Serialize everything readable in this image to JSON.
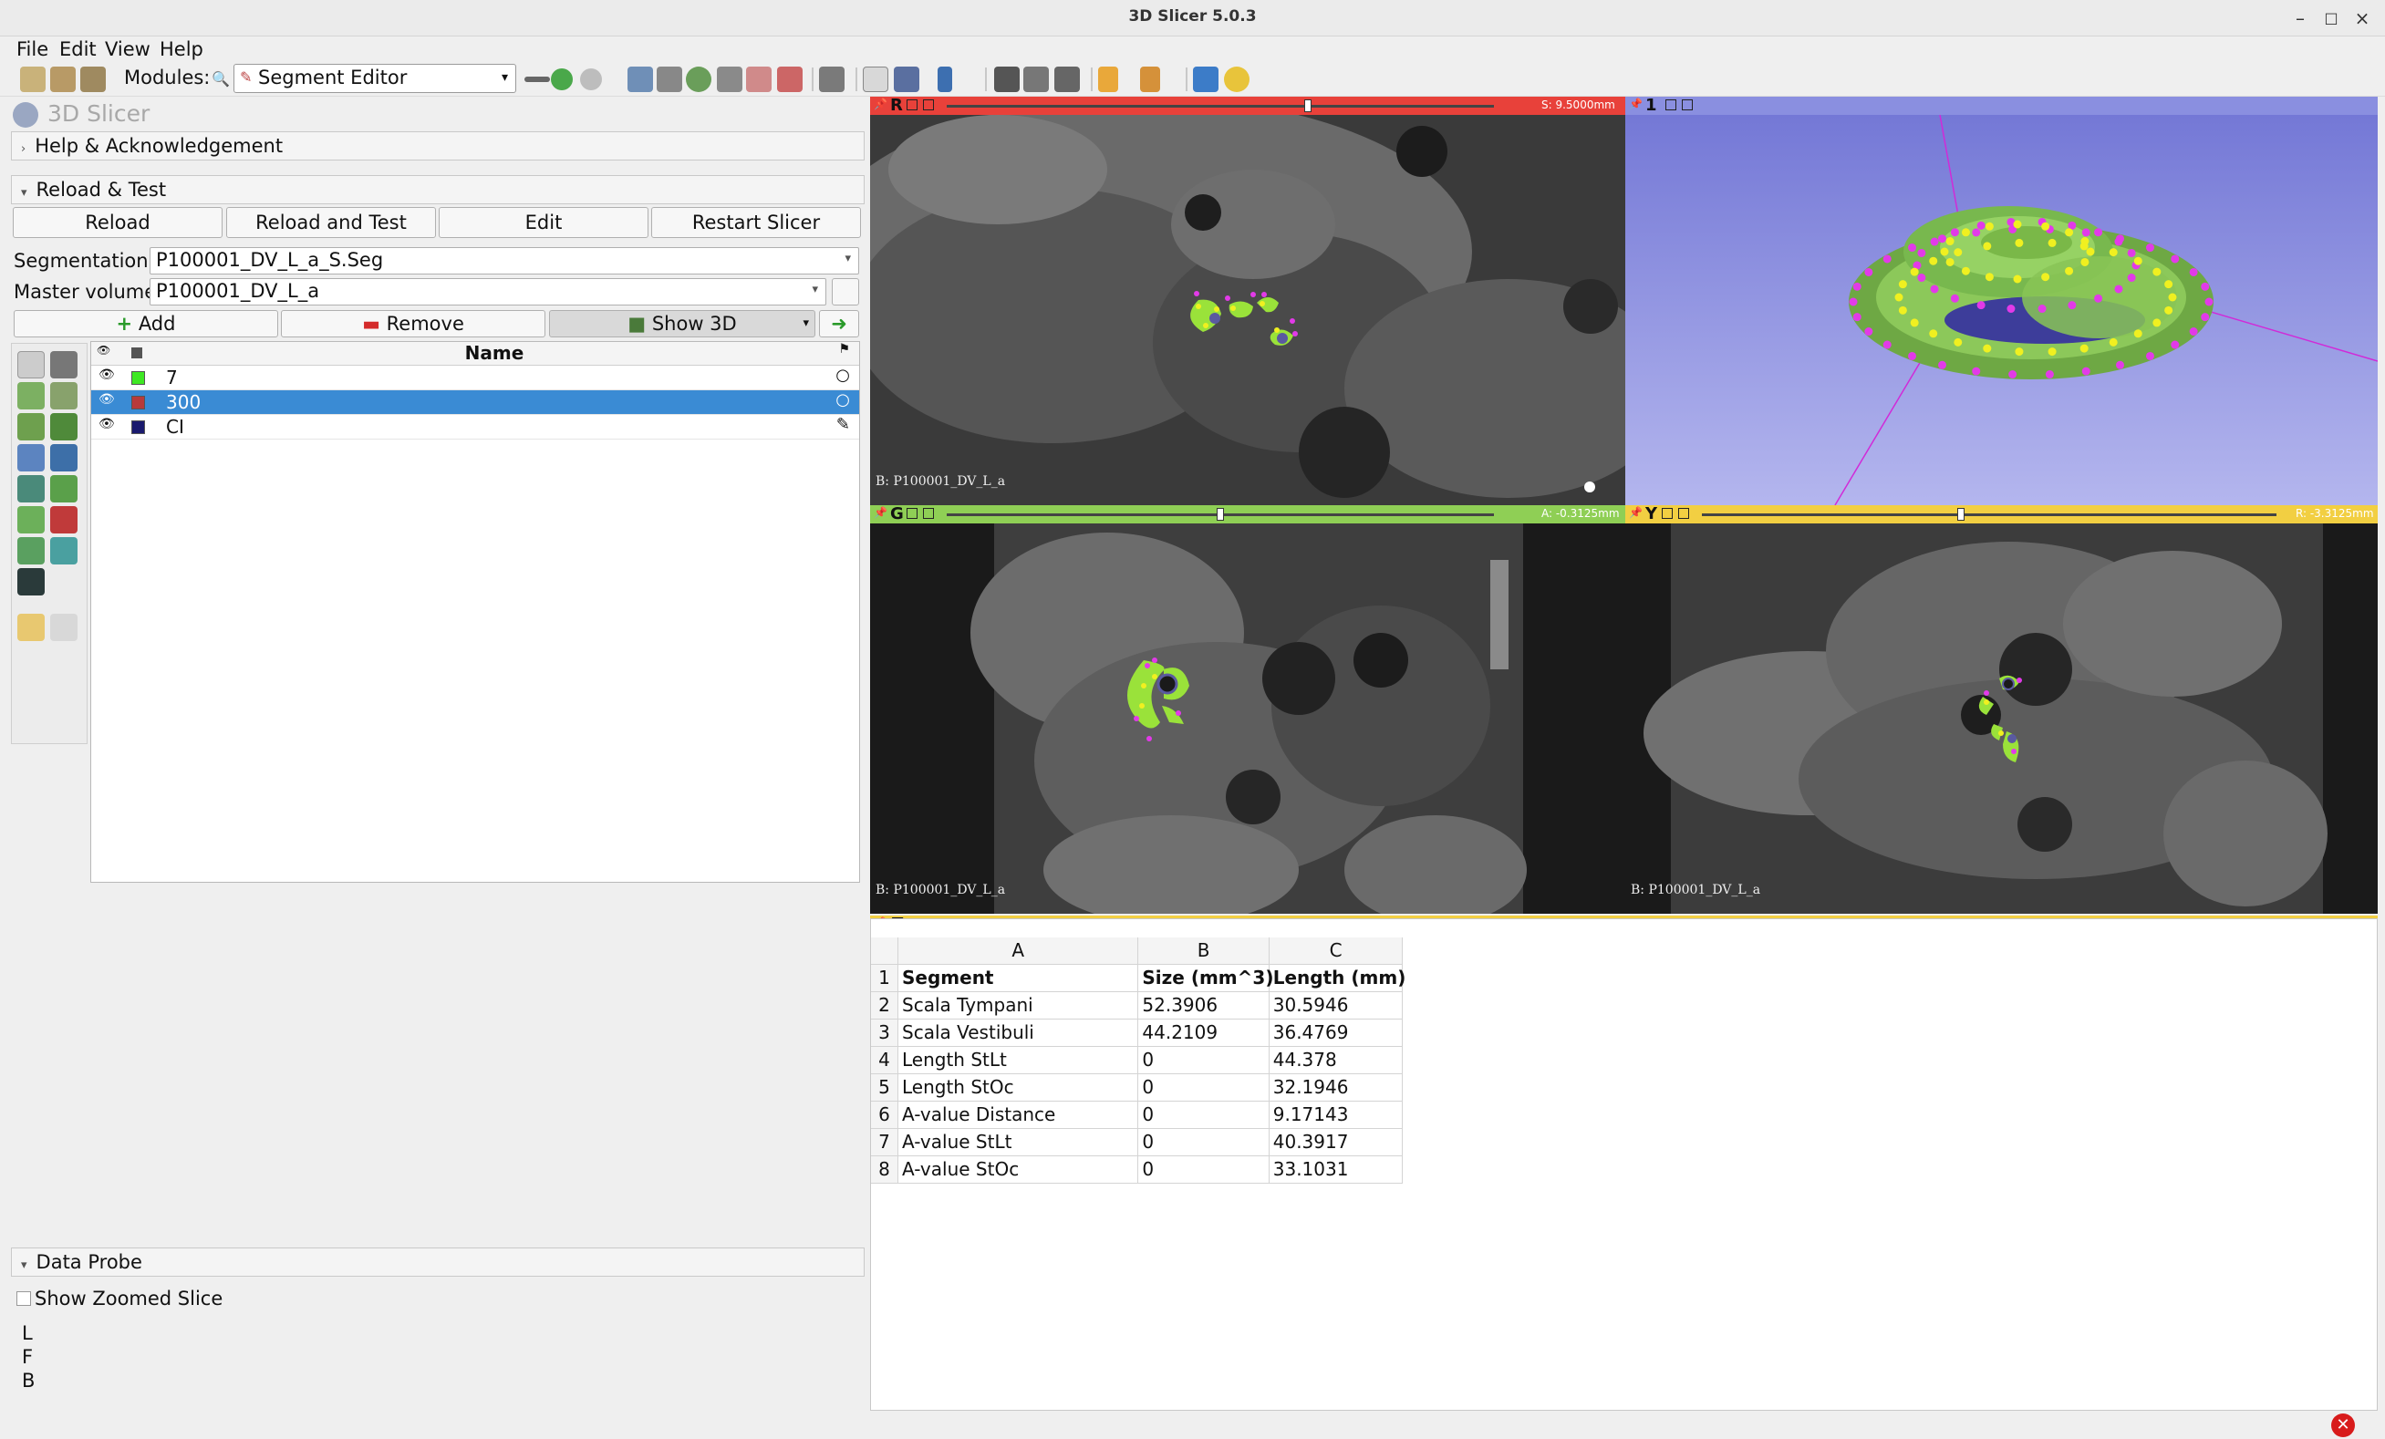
{
  "window": {
    "title": "3D Slicer 5.0.3",
    "controls": [
      "–",
      "□",
      "×"
    ]
  },
  "menu": [
    "File",
    "Edit",
    "View",
    "Help"
  ],
  "toolbar": {
    "modules_label": "Modules:",
    "module_selected": "Segment Editor"
  },
  "left": {
    "app_name": "3D Slicer",
    "help_section": "Help & Acknowledgement",
    "reload_section": "Reload & Test",
    "reload_buttons": [
      "Reload",
      "Reload and Test",
      "Edit",
      "Restart Slicer"
    ],
    "segmentation_label": "Segmentation:",
    "segmentation_value": "P100001_DV_L_a_S.Seg",
    "master_label": "Master volume:",
    "master_value": "P100001_DV_L_a",
    "add_label": "Add",
    "remove_label": "Remove",
    "show3d_label": "Show 3D",
    "seg_table_header": "Name",
    "segments": [
      {
        "name": "7",
        "color": "#3ee823",
        "selected": false,
        "state": "○"
      },
      {
        "name": "300",
        "color": "#b83a3a",
        "selected": true,
        "state": "○"
      },
      {
        "name": "CI",
        "color": "#1a1a6e",
        "selected": false,
        "state": "✎"
      }
    ],
    "data_probe_section": "Data Probe",
    "show_zoomed_slice": "Show Zoomed Slice",
    "probe_lines": [
      "L",
      "F",
      "B"
    ]
  },
  "views": {
    "red": {
      "letter": "R",
      "offset": "S: 9.5000mm",
      "footer": "B: P100001_DV_L_a",
      "slider_level": 0.66
    },
    "threed": {
      "letter": "1"
    },
    "green": {
      "letter": "G",
      "offset": "A: -0.3125mm",
      "footer": "B: P100001_DV_L_a",
      "slider_level": 0.5
    },
    "yellow": {
      "letter": "Y",
      "offset": "R: -3.3125mm",
      "footer": "B: P100001_DV_L_a",
      "slider_level": 0.45
    },
    "table": {
      "letter": "T"
    }
  },
  "colors": {
    "red": "#e8413a",
    "green": "#8fcf55",
    "yellow": "#f2cf42",
    "blue3d": "#8a8fe0",
    "selection": "#3a8bd4"
  },
  "table": {
    "columns": [
      "A",
      "B",
      "C"
    ],
    "rows": [
      [
        "Segment",
        "Size (mm^3)",
        "Length (mm)"
      ],
      [
        "Scala Tympani",
        "52.3906",
        "30.5946"
      ],
      [
        "Scala Vestibuli",
        "44.2109",
        "36.4769"
      ],
      [
        "Length StLt",
        "0",
        "44.378"
      ],
      [
        "Length StOc",
        "0",
        "32.1946"
      ],
      [
        "A-value Distance",
        "0",
        "9.17143"
      ],
      [
        "A-value StLt",
        "0",
        "40.3917"
      ],
      [
        "A-value StOc",
        "0",
        "33.1031"
      ]
    ]
  }
}
